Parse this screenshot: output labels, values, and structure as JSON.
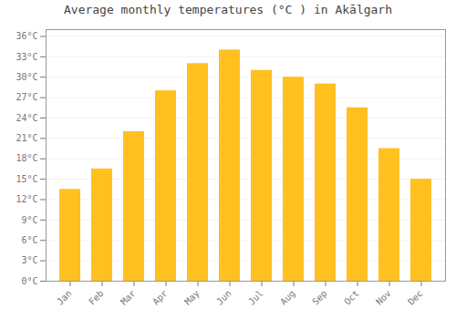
{
  "chart_data": {
    "type": "bar",
    "title": "Average monthly temperatures (°C ) in Akālgarh",
    "categories": [
      "Jan",
      "Feb",
      "Mar",
      "Apr",
      "May",
      "Jun",
      "Jul",
      "Aug",
      "Sep",
      "Oct",
      "Nov",
      "Dec"
    ],
    "values": [
      13.5,
      16.5,
      22.0,
      28.0,
      32.0,
      34.0,
      31.0,
      30.0,
      29.0,
      25.5,
      19.5,
      15.0
    ],
    "color": "#FFC020",
    "ylim": [
      0,
      37
    ],
    "yticks": [
      {
        "value": 0,
        "label": "0°C"
      },
      {
        "value": 3,
        "label": "3°C"
      },
      {
        "value": 6,
        "label": "6°C"
      },
      {
        "value": 9,
        "label": "9°C"
      },
      {
        "value": 12,
        "label": "12°C"
      },
      {
        "value": 15,
        "label": "15°C"
      },
      {
        "value": 18,
        "label": "18°C"
      },
      {
        "value": 21,
        "label": "21°C"
      },
      {
        "value": 24,
        "label": "24°C"
      },
      {
        "value": 27,
        "label": "27°C"
      },
      {
        "value": 30,
        "label": "30°C"
      },
      {
        "value": 33,
        "label": "33°C"
      },
      {
        "value": 36,
        "label": "36°C"
      }
    ],
    "grid": true
  }
}
